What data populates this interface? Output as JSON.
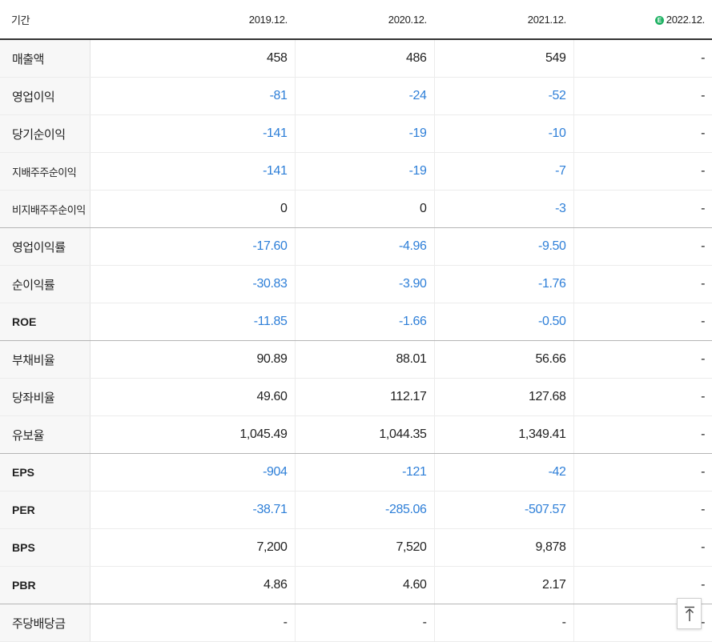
{
  "header": {
    "period_label": "기간",
    "years": [
      "2019.12.",
      "2020.12.",
      "2021.12.",
      "2022.12."
    ],
    "estimate_marker": "E"
  },
  "rows": [
    {
      "label": "매출액",
      "values": [
        "458",
        "486",
        "549",
        "-"
      ]
    },
    {
      "label": "영업이익",
      "values": [
        "-81",
        "-24",
        "-52",
        "-"
      ]
    },
    {
      "label": "당기순이익",
      "values": [
        "-141",
        "-19",
        "-10",
        "-"
      ]
    },
    {
      "label": "지배주주순이익",
      "values": [
        "-141",
        "-19",
        "-7",
        "-"
      ]
    },
    {
      "label": "비지배주주순이익",
      "values": [
        "0",
        "0",
        "-3",
        "-"
      ]
    },
    {
      "label": "영업이익률",
      "values": [
        "-17.60",
        "-4.96",
        "-9.50",
        "-"
      ]
    },
    {
      "label": "순이익률",
      "values": [
        "-30.83",
        "-3.90",
        "-1.76",
        "-"
      ]
    },
    {
      "label": "ROE",
      "values": [
        "-11.85",
        "-1.66",
        "-0.50",
        "-"
      ]
    },
    {
      "label": "부채비율",
      "values": [
        "90.89",
        "88.01",
        "56.66",
        "-"
      ]
    },
    {
      "label": "당좌비율",
      "values": [
        "49.60",
        "112.17",
        "127.68",
        "-"
      ]
    },
    {
      "label": "유보율",
      "values": [
        "1,045.49",
        "1,044.35",
        "1,349.41",
        "-"
      ]
    },
    {
      "label": "EPS",
      "values": [
        "-904",
        "-121",
        "-42",
        "-"
      ]
    },
    {
      "label": "PER",
      "values": [
        "-38.71",
        "-285.06",
        "-507.57",
        "-"
      ]
    },
    {
      "label": "BPS",
      "values": [
        "7,200",
        "7,520",
        "9,878",
        "-"
      ]
    },
    {
      "label": "PBR",
      "values": [
        "4.86",
        "4.60",
        "2.17",
        "-"
      ]
    },
    {
      "label": "주당배당금",
      "values": [
        "-",
        "-",
        "-",
        "-"
      ]
    }
  ],
  "scroll_top_icon": "arrow-up-to-top-icon",
  "colors": {
    "negative": "#2e7fd8",
    "estimate_badge": "#20b264",
    "label_bg": "#f7f7f7"
  }
}
